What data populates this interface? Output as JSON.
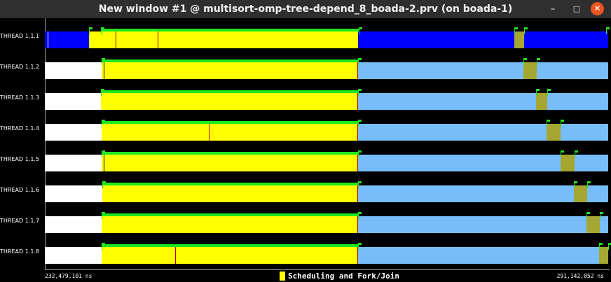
{
  "window": {
    "title": "New window #1 @ multisort-omp-tree-depend_8_boada-2.prv (on boada-1)",
    "controls": {
      "minimize": "–",
      "maximize": "□",
      "close": "✕"
    }
  },
  "colors": {
    "idle": "#ffffff",
    "scheduling_fork_join": "#ffff00",
    "running_master": "#0000ff",
    "running": "#77bdfa",
    "synchronization": "#a5a732",
    "event_flag": "#23e323"
  },
  "threads": [
    {
      "label": "THREAD 1.1.1"
    },
    {
      "label": "THREAD 1.1.2"
    },
    {
      "label": "THREAD 1.1.3"
    },
    {
      "label": "THREAD 1.1.4"
    },
    {
      "label": "THREAD 1.1.5"
    },
    {
      "label": "THREAD 1.1.6"
    },
    {
      "label": "THREAD 1.1.7"
    },
    {
      "label": "THREAD 1.1.8"
    }
  ],
  "time_axis": {
    "start": "232,479,101 ns",
    "end": "291,142,052 ns"
  },
  "legend": {
    "label": "Scheduling and Fork/Join",
    "color": "#ffff00"
  }
}
